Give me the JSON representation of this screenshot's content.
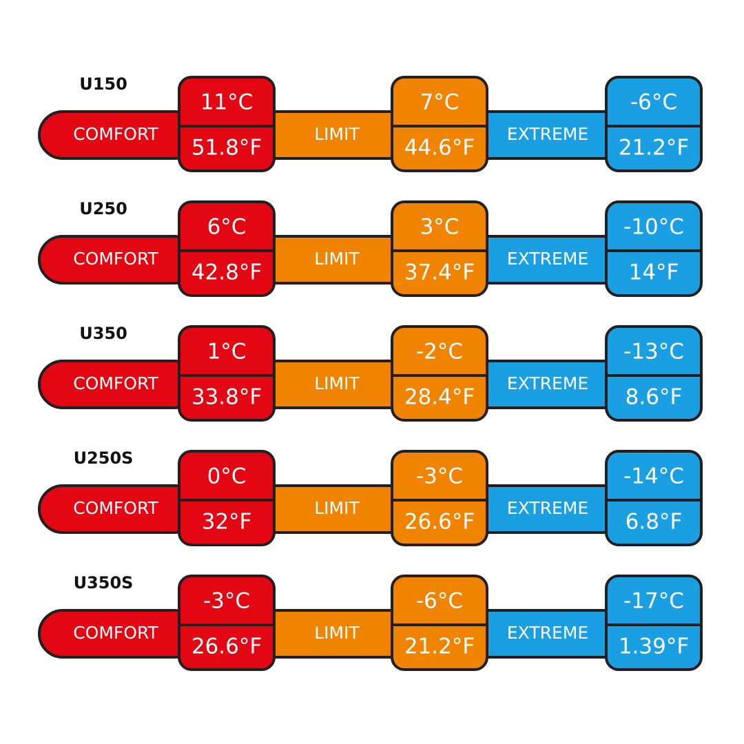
{
  "rows": [
    {
      "model": "U150",
      "zones": [
        {
          "label": "COMFORT",
          "celsius": "11°C",
          "fahrenheit": "51.8°F"
        },
        {
          "label": "LIMIT",
          "celsius": "7°C",
          "fahrenheit": "44.6°F"
        },
        {
          "label": "EXTREME",
          "celsius": "-6°C",
          "fahrenheit": "21.2°F"
        }
      ]
    },
    {
      "model": "U250",
      "zones": [
        {
          "label": "COMFORT",
          "celsius": "6°C",
          "fahrenheit": "42.8°F"
        },
        {
          "label": "LIMIT",
          "celsius": "3°C",
          "fahrenheit": "37.4°F"
        },
        {
          "label": "EXTREME",
          "celsius": "-10°C",
          "fahrenheit": "14°F"
        }
      ]
    },
    {
      "model": "U350",
      "zones": [
        {
          "label": "COMFORT",
          "celsius": "1°C",
          "fahrenheit": "33.8°F"
        },
        {
          "label": "LIMIT",
          "celsius": "-2°C",
          "fahrenheit": "28.4°F"
        },
        {
          "label": "EXTREME",
          "celsius": "-13°C",
          "fahrenheit": "8.6°F"
        }
      ]
    },
    {
      "model": "U250S",
      "zones": [
        {
          "label": "COMFORT",
          "celsius": "0°C",
          "fahrenheit": "32°F"
        },
        {
          "label": "LIMIT",
          "celsius": "-3°C",
          "fahrenheit": "26.6°F"
        },
        {
          "label": "EXTREME",
          "celsius": "-14°C",
          "fahrenheit": "6.8°F"
        }
      ]
    },
    {
      "model": "U350S",
      "zones": [
        {
          "label": "COMFORT",
          "celsius": "-3°C",
          "fahrenheit": "26.6°F"
        },
        {
          "label": "LIMIT",
          "celsius": "-6°C",
          "fahrenheit": "21.2°F"
        },
        {
          "label": "EXTREME",
          "celsius": "-17°C",
          "fahrenheit": "1.39°F"
        }
      ]
    }
  ]
}
